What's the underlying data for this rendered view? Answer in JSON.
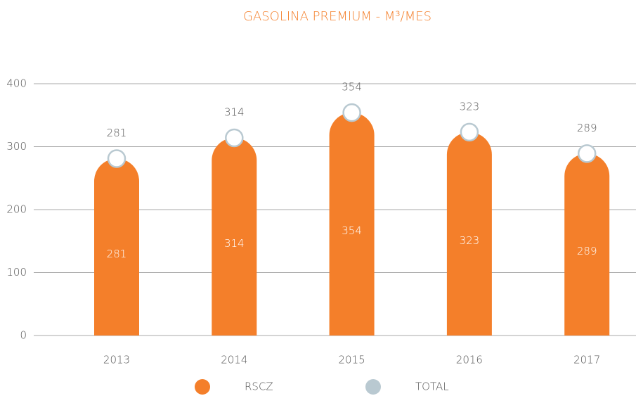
{
  "chart_data": {
    "type": "bar",
    "title": "GASOLINA PREMIUM -  M³/MES",
    "categories": [
      "2013",
      "2014",
      "2015",
      "2016",
      "2017"
    ],
    "series": [
      {
        "name": "RSCZ",
        "color": "#f47f2a",
        "values": [
          281,
          314,
          354,
          323,
          289
        ]
      },
      {
        "name": "TOTAL",
        "color": "#b9c9d1",
        "values": [
          281,
          314,
          354,
          323,
          289
        ]
      }
    ],
    "ylim": [
      0,
      400
    ],
    "yticks": [
      0,
      100,
      200,
      300,
      400
    ],
    "grid": true
  }
}
